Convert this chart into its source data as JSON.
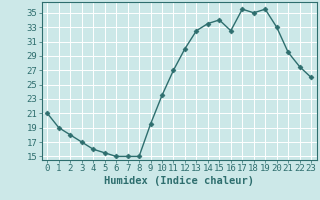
{
  "x": [
    0,
    1,
    2,
    3,
    4,
    5,
    6,
    7,
    8,
    9,
    10,
    11,
    12,
    13,
    14,
    15,
    16,
    17,
    18,
    19,
    20,
    21,
    22,
    23
  ],
  "y": [
    21,
    19,
    18,
    17,
    16,
    15.5,
    15,
    15,
    15,
    19.5,
    23.5,
    27,
    30,
    32.5,
    33.5,
    34,
    32.5,
    35.5,
    35,
    35.5,
    33,
    29.5,
    27.5,
    26
  ],
  "line_color": "#2e6e6e",
  "marker": "D",
  "marker_size": 2.5,
  "bg_color": "#cce8e8",
  "grid_color": "#ffffff",
  "xlabel": "Humidex (Indice chaleur)",
  "xlim": [
    -0.5,
    23.5
  ],
  "ylim": [
    14.5,
    36.5
  ],
  "yticks": [
    15,
    17,
    19,
    21,
    23,
    25,
    27,
    29,
    31,
    33,
    35
  ],
  "xticks": [
    0,
    1,
    2,
    3,
    4,
    5,
    6,
    7,
    8,
    9,
    10,
    11,
    12,
    13,
    14,
    15,
    16,
    17,
    18,
    19,
    20,
    21,
    22,
    23
  ],
  "tick_label_size": 6.5,
  "xlabel_size": 7.5,
  "tick_color": "#2e6e6e",
  "axis_color": "#2e6e6e",
  "line_width": 1.0
}
